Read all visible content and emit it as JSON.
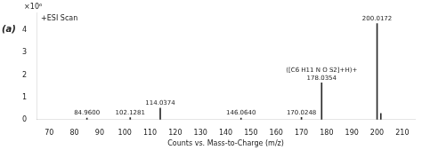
{
  "chart_data": {
    "type": "bar",
    "title": "+ESI Scan",
    "xlabel": "Counts vs. Mass-to-Charge (m/z)",
    "ylabel": "×10⁶",
    "panel_label": "(a)",
    "x": [
      84.96,
      102.1281,
      114.0374,
      146.064,
      170.0248,
      178.0354,
      200.0172,
      201.5
    ],
    "values": [
      0.07,
      0.09,
      0.52,
      0.07,
      0.1,
      1.65,
      4.3,
      0.28
    ],
    "color": "#2a2a2a",
    "xlim": [
      65,
      215
    ],
    "ylim": [
      0,
      4.8
    ],
    "xticks": [
      70,
      80,
      90,
      100,
      110,
      120,
      130,
      140,
      150,
      160,
      170,
      180,
      190,
      200,
      210
    ],
    "yticks": [
      0,
      1,
      2,
      3,
      4
    ],
    "grid": false,
    "annotations": [
      {
        "text": "84.9600",
        "x": 84.96,
        "y": 0.07
      },
      {
        "text": "102.1281",
        "x": 102.1281,
        "y": 0.09
      },
      {
        "text": "114.0374",
        "x": 114.0374,
        "y": 0.52
      },
      {
        "text": "146.0640",
        "x": 146.064,
        "y": 0.07
      },
      {
        "text": "170.0248",
        "x": 170.0248,
        "y": 0.1
      },
      {
        "text": "178.0354",
        "x": 178.0354,
        "y": 1.65
      },
      {
        "text": "([C6 H11 N O S2]+H)+",
        "x": 178.0354,
        "y": 1.65
      },
      {
        "text": "200.0172",
        "x": 200.0172,
        "y": 4.3
      }
    ]
  }
}
